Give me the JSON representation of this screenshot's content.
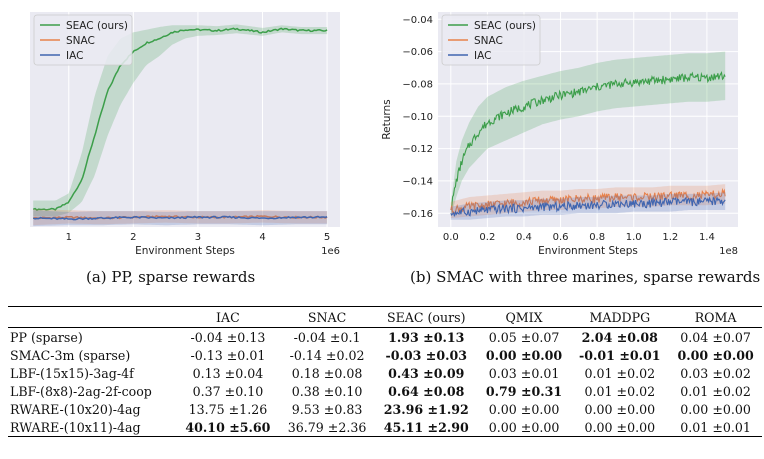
{
  "colors": {
    "seac": "#3c9e4a",
    "snac": "#e8814a",
    "iac": "#3f65b0",
    "plot_bg": "#eaeaf2",
    "grid": "#ffffff"
  },
  "chart_data": [
    {
      "type": "line",
      "xlabel": "Environment Steps",
      "ylabel": "",
      "x_offset_text": "1e6",
      "xlim": [
        0.4,
        5.2
      ],
      "ylim": [
        -0.08,
        2.35
      ],
      "xticks": [
        1,
        2,
        3,
        4,
        5
      ],
      "xtick_labels": [
        "1",
        "2",
        "3",
        "4",
        "5"
      ],
      "yticks": [],
      "ytick_labels": [],
      "grid": true,
      "legend_position": "top-left",
      "series": [
        {
          "name": "SEAC (ours)",
          "color_key": "seac",
          "x": [
            0.45,
            0.8,
            1.0,
            1.2,
            1.4,
            1.6,
            1.8,
            2.0,
            2.2,
            2.4,
            2.6,
            2.8,
            3.0,
            3.3,
            3.6,
            4.0,
            4.3,
            4.6,
            5.0
          ],
          "y": [
            0.12,
            0.12,
            0.2,
            0.45,
            0.95,
            1.45,
            1.75,
            1.9,
            2.0,
            2.05,
            2.12,
            2.15,
            2.15,
            2.14,
            2.16,
            2.12,
            2.16,
            2.14,
            2.14
          ],
          "band_low": [
            0.04,
            0.04,
            0.08,
            0.2,
            0.5,
            0.95,
            1.3,
            1.55,
            1.75,
            1.85,
            1.98,
            2.05,
            2.08,
            2.09,
            2.11,
            2.08,
            2.12,
            2.1,
            2.1
          ],
          "band_high": [
            0.22,
            0.22,
            0.3,
            0.75,
            1.4,
            1.85,
            2.05,
            2.12,
            2.15,
            2.18,
            2.2,
            2.2,
            2.2,
            2.19,
            2.21,
            2.17,
            2.2,
            2.18,
            2.18
          ]
        },
        {
          "name": "SNAC",
          "color_key": "snac",
          "x": [
            0.45,
            1.0,
            1.5,
            2.0,
            2.5,
            3.0,
            3.5,
            4.0,
            4.5,
            5.0
          ],
          "y": [
            0.02,
            0.03,
            0.02,
            0.03,
            0.04,
            0.03,
            0.03,
            0.04,
            0.03,
            0.03
          ],
          "band_low": [
            -0.06,
            -0.04,
            -0.05,
            -0.04,
            -0.03,
            -0.04,
            -0.04,
            -0.03,
            -0.04,
            -0.04
          ],
          "band_high": [
            0.12,
            0.11,
            0.1,
            0.1,
            0.11,
            0.1,
            0.1,
            0.11,
            0.1,
            0.1
          ]
        },
        {
          "name": "IAC",
          "color_key": "iac",
          "x": [
            0.45,
            1.0,
            1.5,
            2.0,
            2.5,
            3.0,
            3.5,
            4.0,
            4.5,
            5.0
          ],
          "y": [
            0.02,
            0.01,
            0.02,
            0.03,
            0.02,
            0.03,
            0.03,
            0.02,
            0.03,
            0.03
          ],
          "band_low": [
            -0.07,
            -0.06,
            -0.06,
            -0.05,
            -0.06,
            -0.05,
            -0.05,
            -0.06,
            -0.05,
            -0.05
          ],
          "band_high": [
            0.11,
            0.09,
            0.1,
            0.1,
            0.09,
            0.1,
            0.1,
            0.1,
            0.1,
            0.1
          ]
        }
      ]
    },
    {
      "type": "line",
      "xlabel": "Environment Steps",
      "ylabel": "Returns",
      "x_offset_text": "1e8",
      "xlim": [
        -0.07,
        1.57
      ],
      "ylim": [
        -0.1685,
        -0.0355
      ],
      "xticks": [
        0.0,
        0.2,
        0.4,
        0.6,
        0.8,
        1.0,
        1.2,
        1.4
      ],
      "xtick_labels": [
        "0.0",
        "0.2",
        "0.4",
        "0.6",
        "0.8",
        "1.0",
        "1.2",
        "1.4"
      ],
      "yticks": [
        -0.04,
        -0.06,
        -0.08,
        -0.1,
        -0.12,
        -0.14,
        -0.16
      ],
      "ytick_labels": [
        "−0.04",
        "−0.06",
        "−0.08",
        "−0.10",
        "−0.12",
        "−0.14",
        "−0.16"
      ],
      "grid": true,
      "legend_position": "top-left",
      "series": [
        {
          "name": "SEAC (ours)",
          "color_key": "seac",
          "x": [
            0.0,
            0.03,
            0.06,
            0.1,
            0.15,
            0.2,
            0.3,
            0.4,
            0.5,
            0.6,
            0.7,
            0.8,
            0.9,
            1.0,
            1.1,
            1.2,
            1.3,
            1.4,
            1.5
          ],
          "y": [
            -0.158,
            -0.14,
            -0.128,
            -0.118,
            -0.11,
            -0.104,
            -0.098,
            -0.094,
            -0.09,
            -0.087,
            -0.085,
            -0.082,
            -0.08,
            -0.079,
            -0.078,
            -0.077,
            -0.076,
            -0.076,
            -0.075
          ],
          "band_low": [
            -0.162,
            -0.15,
            -0.14,
            -0.132,
            -0.126,
            -0.12,
            -0.115,
            -0.11,
            -0.105,
            -0.102,
            -0.1,
            -0.097,
            -0.095,
            -0.094,
            -0.093,
            -0.092,
            -0.091,
            -0.091,
            -0.09
          ],
          "band_high": [
            -0.154,
            -0.128,
            -0.115,
            -0.104,
            -0.094,
            -0.088,
            -0.082,
            -0.078,
            -0.075,
            -0.072,
            -0.07,
            -0.067,
            -0.065,
            -0.064,
            -0.063,
            -0.062,
            -0.061,
            -0.061,
            -0.06
          ]
        },
        {
          "name": "SNAC",
          "color_key": "snac",
          "x": [
            0.0,
            0.1,
            0.2,
            0.3,
            0.4,
            0.5,
            0.6,
            0.7,
            0.8,
            0.9,
            1.0,
            1.1,
            1.2,
            1.3,
            1.4,
            1.5
          ],
          "y": [
            -0.158,
            -0.156,
            -0.155,
            -0.154,
            -0.153,
            -0.152,
            -0.152,
            -0.151,
            -0.151,
            -0.15,
            -0.15,
            -0.15,
            -0.149,
            -0.149,
            -0.149,
            -0.148
          ],
          "band_low": [
            -0.163,
            -0.162,
            -0.161,
            -0.16,
            -0.159,
            -0.158,
            -0.158,
            -0.157,
            -0.157,
            -0.156,
            -0.156,
            -0.156,
            -0.155,
            -0.155,
            -0.155,
            -0.154
          ],
          "band_high": [
            -0.153,
            -0.15,
            -0.149,
            -0.148,
            -0.147,
            -0.146,
            -0.146,
            -0.145,
            -0.145,
            -0.144,
            -0.144,
            -0.144,
            -0.143,
            -0.143,
            -0.143,
            -0.142
          ]
        },
        {
          "name": "IAC",
          "color_key": "iac",
          "x": [
            0.0,
            0.1,
            0.2,
            0.3,
            0.4,
            0.5,
            0.6,
            0.7,
            0.8,
            0.9,
            1.0,
            1.1,
            1.2,
            1.3,
            1.4,
            1.5
          ],
          "y": [
            -0.16,
            -0.159,
            -0.158,
            -0.157,
            -0.157,
            -0.156,
            -0.156,
            -0.155,
            -0.155,
            -0.154,
            -0.154,
            -0.154,
            -0.153,
            -0.153,
            -0.153,
            -0.152
          ],
          "band_low": [
            -0.164,
            -0.164,
            -0.163,
            -0.162,
            -0.162,
            -0.161,
            -0.161,
            -0.16,
            -0.16,
            -0.16,
            -0.159,
            -0.159,
            -0.159,
            -0.158,
            -0.158,
            -0.158
          ],
          "band_high": [
            -0.156,
            -0.154,
            -0.153,
            -0.152,
            -0.152,
            -0.151,
            -0.151,
            -0.15,
            -0.15,
            -0.149,
            -0.149,
            -0.149,
            -0.148,
            -0.148,
            -0.148,
            -0.147
          ]
        }
      ]
    }
  ],
  "captions": {
    "a": "(a) PP, sparse rewards",
    "b": "(b) SMAC with three marines, sparse rewards"
  },
  "table": {
    "headers": [
      "",
      "IAC",
      "SNAC",
      "SEAC (ours)",
      "QMIX",
      "MADDPG",
      "ROMA"
    ],
    "rows": [
      {
        "label": "PP (sparse)",
        "cells": [
          "-0.04 ±0.13",
          "-0.04 ±0.1",
          "1.93 ±0.13",
          "0.05 ±0.07",
          "2.04 ±0.08",
          "0.04 ±0.07"
        ],
        "bold": [
          2,
          4
        ]
      },
      {
        "label": "SMAC-3m (sparse)",
        "cells": [
          "-0.13 ±0.01",
          "-0.14 ±0.02",
          "-0.03 ±0.03",
          "0.00 ±0.00",
          "-0.01 ±0.01",
          "0.00 ±0.00"
        ],
        "bold": [
          2,
          3,
          4,
          5
        ]
      },
      {
        "label": "LBF-(15x15)-3ag-4f",
        "cells": [
          "0.13 ±0.04",
          "0.18 ±0.08",
          "0.43 ±0.09",
          "0.03 ±0.01",
          "0.01 ±0.02",
          "0.03 ±0.02"
        ],
        "bold": [
          2
        ]
      },
      {
        "label": "LBF-(8x8)-2ag-2f-coop",
        "cells": [
          "0.37 ±0.10",
          "0.38 ±0.10",
          "0.64 ±0.08",
          "0.79 ±0.31",
          "0.01 ±0.02",
          "0.01 ±0.02"
        ],
        "bold": [
          2,
          3
        ]
      },
      {
        "label": "RWARE-(10x20)-4ag",
        "cells": [
          "13.75 ±1.26",
          "9.53 ±0.83",
          "23.96 ±1.92",
          "0.00 ±0.00",
          "0.00 ±0.00",
          "0.00 ±0.00"
        ],
        "bold": [
          2
        ]
      },
      {
        "label": "RWARE-(10x11)-4ag",
        "cells": [
          "40.10 ±5.60",
          "36.79 ±2.36",
          "45.11 ±2.90",
          "0.00 ±0.00",
          "0.00 ±0.00",
          "0.01 ±0.01"
        ],
        "bold": [
          0,
          2
        ]
      }
    ]
  }
}
